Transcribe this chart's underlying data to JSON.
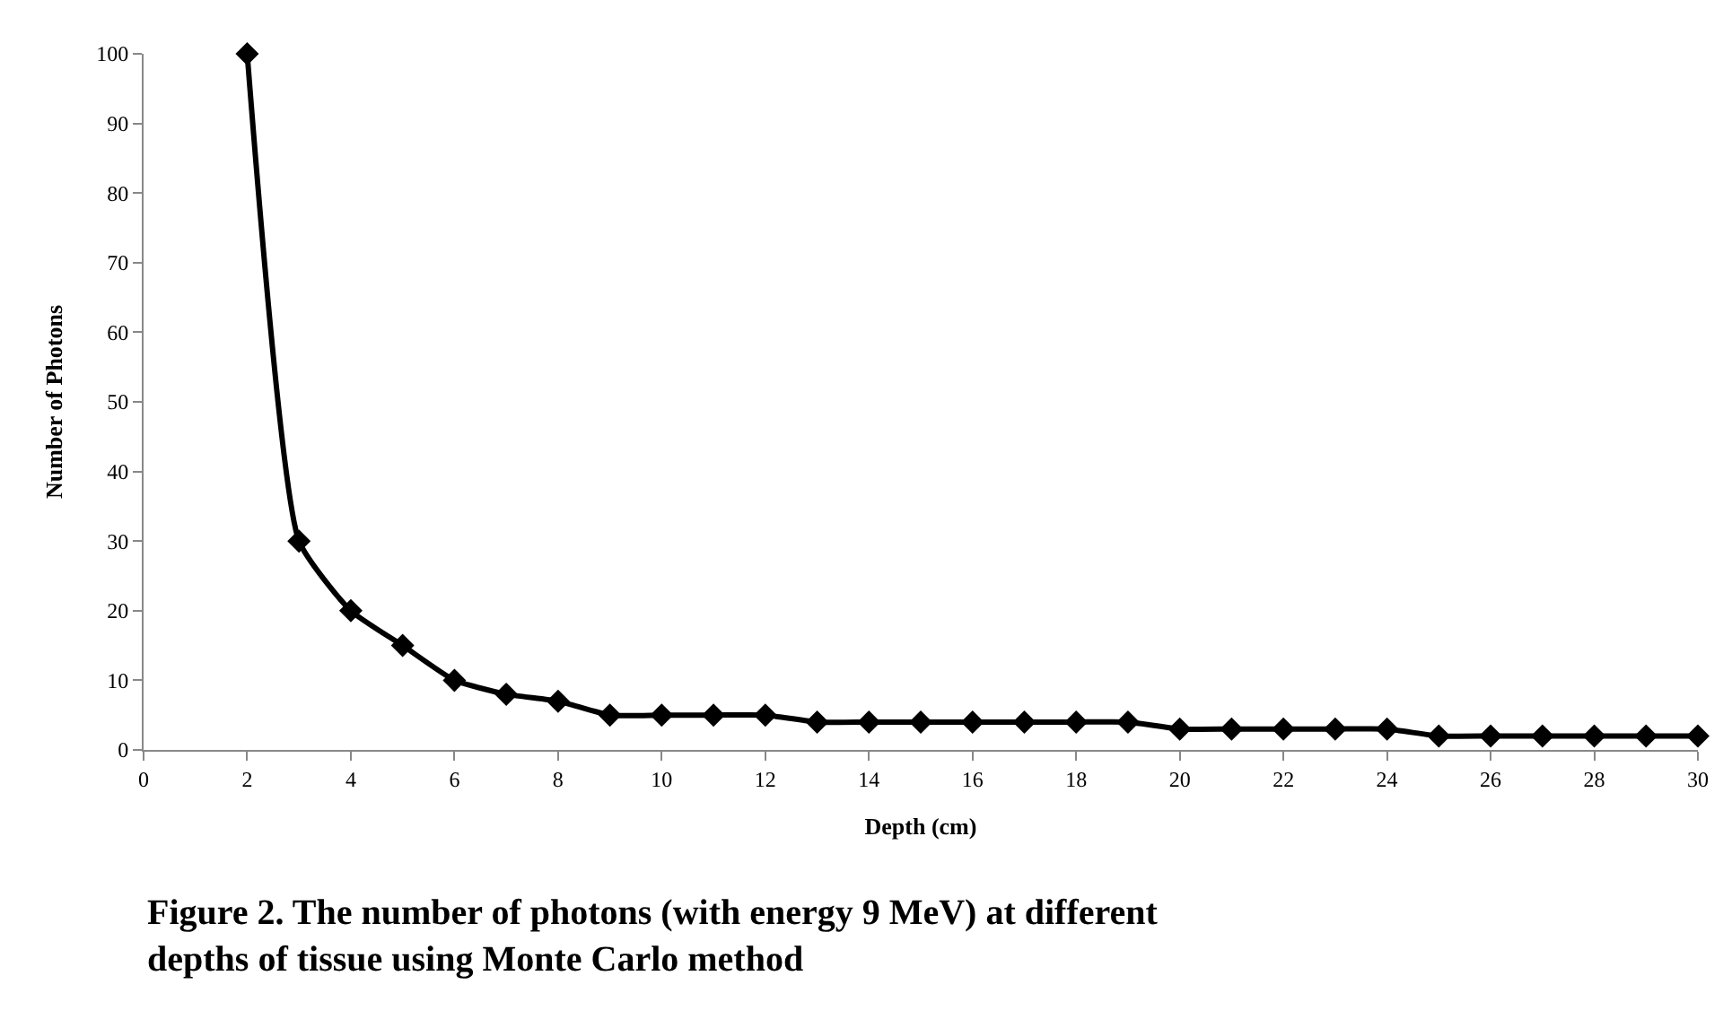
{
  "chart_data": {
    "type": "line",
    "x": [
      2,
      3,
      4,
      5,
      6,
      7,
      8,
      9,
      10,
      11,
      12,
      13,
      14,
      15,
      16,
      17,
      18,
      19,
      20,
      21,
      22,
      23,
      24,
      25,
      26,
      27,
      28,
      29,
      30
    ],
    "values": [
      100,
      30,
      20,
      15,
      10,
      8,
      7,
      5,
      5,
      5,
      5,
      4,
      4,
      4,
      4,
      4,
      4,
      4,
      3,
      3,
      3,
      3,
      3,
      2,
      2,
      2,
      2,
      2,
      2
    ],
    "color": "#000000",
    "marker": "diamond",
    "line_style": "solid",
    "xlabel": "Depth (cm)",
    "ylabel": "Number of Photons",
    "xlim": [
      0,
      30
    ],
    "xticks": [
      0,
      2,
      4,
      6,
      8,
      10,
      12,
      14,
      16,
      18,
      20,
      22,
      24,
      26,
      28,
      30
    ],
    "ylim": [
      0,
      100
    ],
    "yticks": [
      0,
      10,
      20,
      30,
      40,
      50,
      60,
      70,
      80,
      90,
      100
    ],
    "annotations": [
      "Figure 2. The number of photons (with energy 9 MeV) at different\ndepths of tissue using Monte Carlo method"
    ]
  }
}
